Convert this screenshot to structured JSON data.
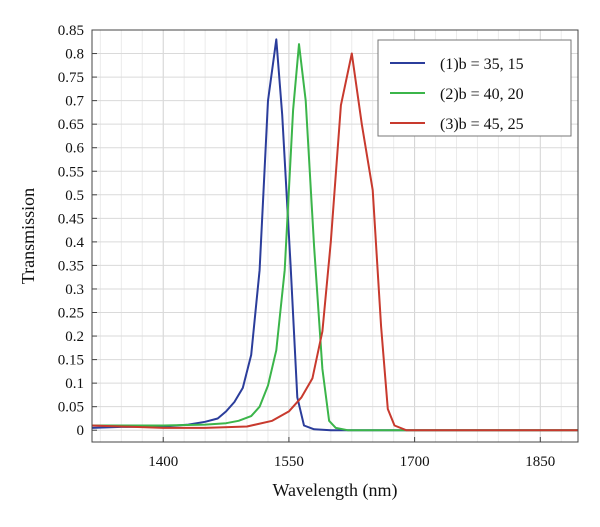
{
  "chart_data": {
    "type": "line",
    "title": "",
    "xlabel": "Wavelength (nm)",
    "ylabel": "Transmission",
    "xlim": [
      1315,
      1895
    ],
    "ylim": [
      -0.025,
      0.85
    ],
    "xticks": [
      1400,
      1550,
      1700,
      1850
    ],
    "yticks": [
      0,
      0.05,
      0.1,
      0.15,
      0.2,
      0.25,
      0.3,
      0.35,
      0.4,
      0.45,
      0.5,
      0.55,
      0.6,
      0.65,
      0.7,
      0.75,
      0.8,
      0.85
    ],
    "grid": true,
    "legend_position": "top-right",
    "series": [
      {
        "name": "(1)b = 35, 15",
        "color": "#2b3d9b",
        "x": [
          1315,
          1350,
          1400,
          1430,
          1450,
          1465,
          1475,
          1485,
          1495,
          1505,
          1515,
          1525,
          1535,
          1542,
          1552,
          1560,
          1568,
          1580,
          1600,
          1650,
          1895
        ],
        "y": [
          0.005,
          0.007,
          0.008,
          0.012,
          0.018,
          0.025,
          0.04,
          0.06,
          0.09,
          0.16,
          0.34,
          0.7,
          0.83,
          0.67,
          0.35,
          0.07,
          0.01,
          0.002,
          0,
          0,
          0
        ]
      },
      {
        "name": "(2)b = 40, 20",
        "color": "#3bb54a",
        "x": [
          1315,
          1400,
          1450,
          1475,
          1490,
          1505,
          1515,
          1525,
          1535,
          1545,
          1555,
          1562,
          1570,
          1580,
          1590,
          1598,
          1606,
          1620,
          1650,
          1895
        ],
        "y": [
          0.01,
          0.01,
          0.012,
          0.015,
          0.02,
          0.03,
          0.05,
          0.095,
          0.17,
          0.34,
          0.68,
          0.82,
          0.7,
          0.39,
          0.13,
          0.02,
          0.005,
          0,
          0,
          0
        ]
      },
      {
        "name": "(3)b = 45, 25",
        "color": "#c83a2e",
        "x": [
          1315,
          1400,
          1450,
          1500,
          1530,
          1550,
          1565,
          1578,
          1590,
          1600,
          1612,
          1625,
          1637,
          1650,
          1660,
          1668,
          1676,
          1690,
          1720,
          1895
        ],
        "y": [
          0.01,
          0.005,
          0.005,
          0.008,
          0.02,
          0.04,
          0.07,
          0.11,
          0.21,
          0.4,
          0.69,
          0.8,
          0.65,
          0.51,
          0.22,
          0.045,
          0.01,
          0,
          0,
          0
        ]
      }
    ]
  }
}
